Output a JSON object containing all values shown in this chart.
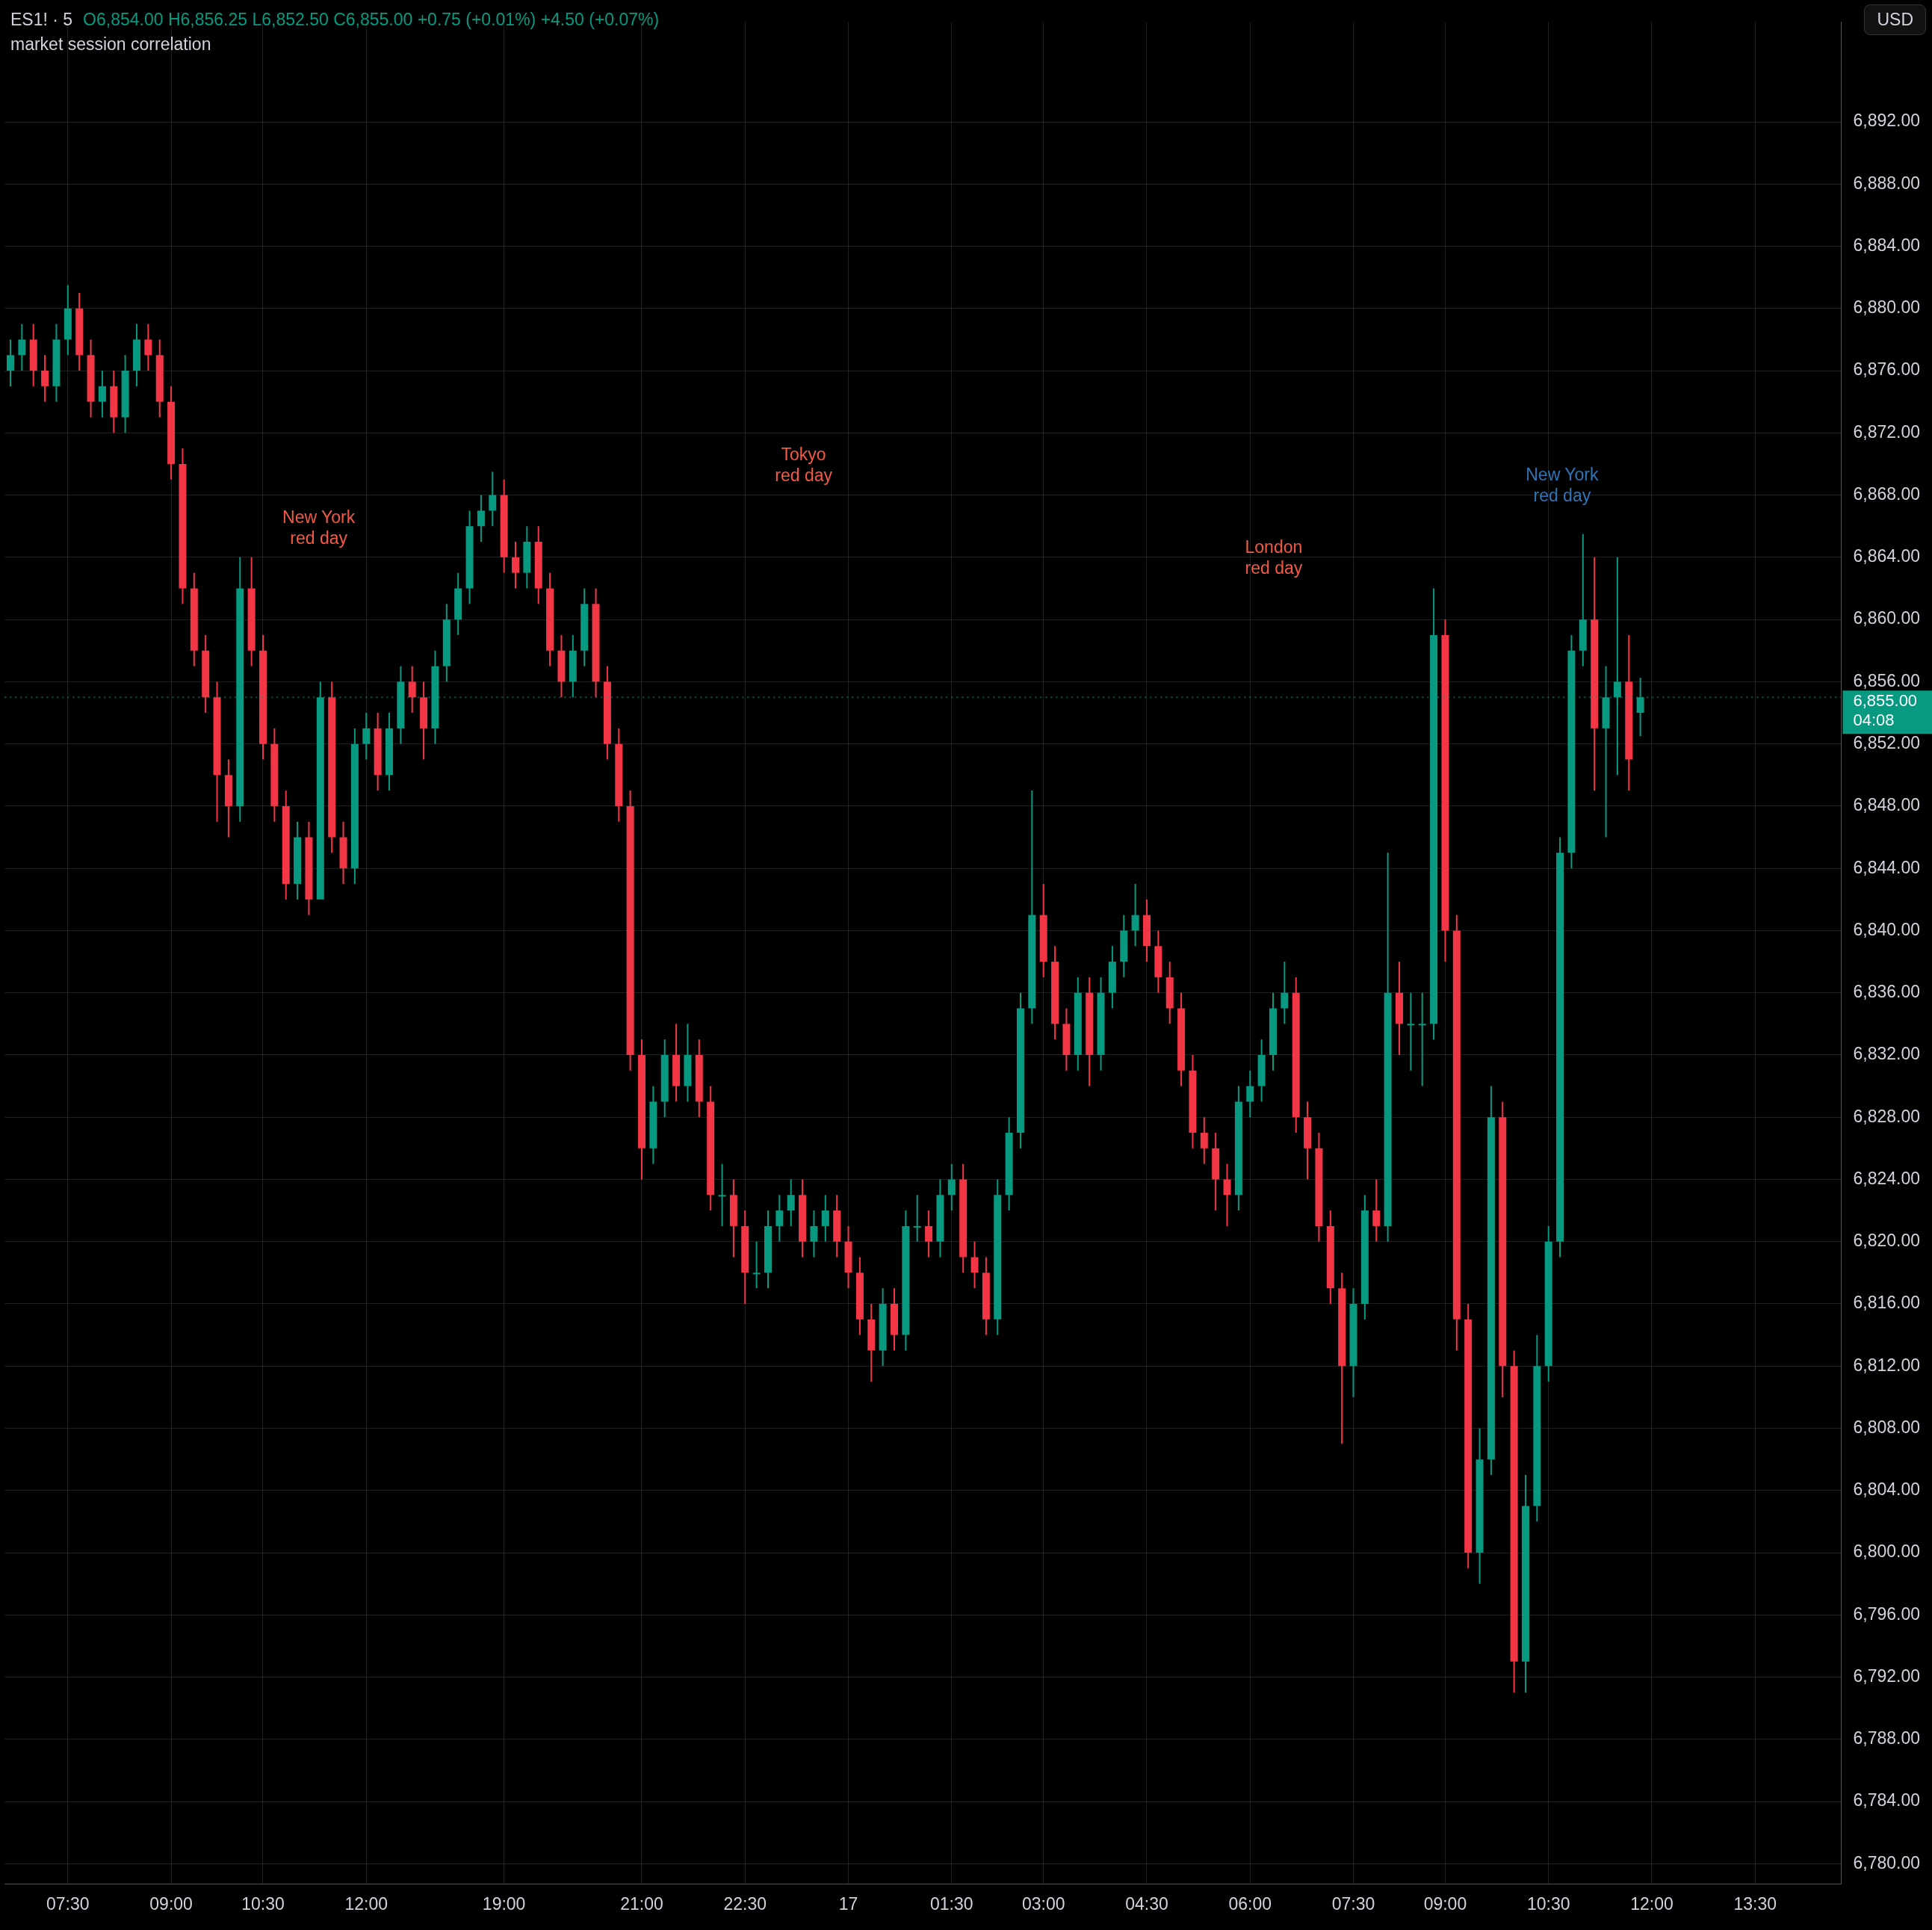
{
  "chart_data": {
    "type": "candlestick",
    "title": "ES1! · 5",
    "subtitle": "O6,854.00 H6,856.25 L6,852.50 C6,855.00 +0.75 (+0.01%) +4.50 (+0.07%)",
    "annotations": [
      "market session correlation",
      "USD",
      "New York\nred day",
      "Tokyo\nred day",
      "London\nred day",
      "New York\nred day",
      "04:08"
    ],
    "categories": [
      null,
      null,
      null,
      null,
      null,
      "07:30",
      null,
      null,
      null,
      null,
      null,
      null,
      null,
      null,
      "09:00",
      null,
      null,
      null,
      null,
      null,
      null,
      null,
      "10:30",
      null,
      null,
      null,
      null,
      null,
      null,
      null,
      null,
      "12:00",
      null,
      null,
      null,
      null,
      null,
      null,
      null,
      null,
      null,
      null,
      null,
      "19:00",
      null,
      null,
      null,
      null,
      null,
      null,
      null,
      null,
      null,
      null,
      null,
      "21:00",
      null,
      null,
      null,
      null,
      null,
      null,
      null,
      null,
      "22:30",
      null,
      null,
      null,
      null,
      null,
      null,
      null,
      null,
      "17",
      null,
      null,
      null,
      null,
      null,
      null,
      null,
      null,
      "01:30",
      null,
      null,
      null,
      null,
      null,
      null,
      null,
      "03:00",
      null,
      null,
      null,
      null,
      null,
      null,
      null,
      null,
      "04:30",
      null,
      null,
      null,
      null,
      null,
      null,
      null,
      null,
      "06:00",
      null,
      null,
      null,
      null,
      null,
      null,
      null,
      null,
      "07:30",
      null,
      null,
      null,
      null,
      null,
      null,
      null,
      "09:00",
      null,
      null,
      null,
      null,
      null,
      null,
      null,
      null,
      "10:30",
      null,
      null,
      null,
      null,
      null,
      null,
      null,
      null,
      "12:00",
      null,
      null,
      null,
      null,
      null,
      null,
      null,
      null,
      "13:30",
      null,
      null,
      null,
      null,
      null,
      null,
      null
    ],
    "ohlc": [
      [
        6876,
        6878,
        6875,
        6877
      ],
      [
        6877,
        6879,
        6876,
        6878
      ],
      [
        6878,
        6879,
        6875,
        6876
      ],
      [
        6876,
        6877,
        6874,
        6875
      ],
      [
        6875,
        6879,
        6874,
        6878
      ],
      [
        6878,
        6881.5,
        6877,
        6880
      ],
      [
        6880,
        6881,
        6876,
        6877
      ],
      [
        6877,
        6878,
        6873,
        6874
      ],
      [
        6874,
        6876,
        6873,
        6875
      ],
      [
        6875,
        6876,
        6872,
        6873
      ],
      [
        6873,
        6877,
        6872,
        6876
      ],
      [
        6876,
        6879,
        6875,
        6878
      ],
      [
        6878,
        6879,
        6876,
        6877
      ],
      [
        6877,
        6878,
        6873,
        6874
      ],
      [
        6874,
        6875,
        6869,
        6870
      ],
      [
        6870,
        6871,
        6861,
        6862
      ],
      [
        6862,
        6863,
        6857,
        6858
      ],
      [
        6858,
        6859,
        6854,
        6855
      ],
      [
        6855,
        6856,
        6847,
        6850
      ],
      [
        6850,
        6851,
        6846,
        6848
      ],
      [
        6848,
        6864,
        6847,
        6862
      ],
      [
        6862,
        6864,
        6857,
        6858
      ],
      [
        6858,
        6859,
        6851,
        6852
      ],
      [
        6852,
        6853,
        6847,
        6848
      ],
      [
        6848,
        6849,
        6842,
        6843
      ],
      [
        6843,
        6847,
        6842,
        6846
      ],
      [
        6846,
        6847,
        6841,
        6842
      ],
      [
        6842,
        6856,
        6842,
        6855
      ],
      [
        6855,
        6856,
        6845,
        6846
      ],
      [
        6846,
        6847,
        6843,
        6844
      ],
      [
        6844,
        6853,
        6843,
        6852
      ],
      [
        6852,
        6854,
        6851,
        6853
      ],
      [
        6853,
        6854,
        6849,
        6850
      ],
      [
        6850,
        6854,
        6849,
        6853
      ],
      [
        6853,
        6857,
        6852,
        6856
      ],
      [
        6856,
        6857,
        6854,
        6855
      ],
      [
        6855,
        6856,
        6851,
        6853
      ],
      [
        6853,
        6858,
        6852,
        6857
      ],
      [
        6857,
        6861,
        6856,
        6860
      ],
      [
        6860,
        6863,
        6859,
        6862
      ],
      [
        6862,
        6867,
        6861,
        6866
      ],
      [
        6866,
        6868,
        6865,
        6867
      ],
      [
        6867,
        6869.5,
        6866,
        6868
      ],
      [
        6868,
        6869,
        6863,
        6864
      ],
      [
        6864,
        6865,
        6862,
        6863
      ],
      [
        6863,
        6866,
        6862,
        6865
      ],
      [
        6865,
        6866,
        6861,
        6862
      ],
      [
        6862,
        6863,
        6857,
        6858
      ],
      [
        6858,
        6859,
        6855,
        6856
      ],
      [
        6856,
        6859,
        6855,
        6858
      ],
      [
        6858,
        6862,
        6857,
        6861
      ],
      [
        6861,
        6862,
        6855,
        6856
      ],
      [
        6856,
        6857,
        6851,
        6852
      ],
      [
        6852,
        6853,
        6847,
        6848
      ],
      [
        6848,
        6849,
        6831,
        6832
      ],
      [
        6832,
        6833,
        6824,
        6826
      ],
      [
        6826,
        6830,
        6825,
        6829
      ],
      [
        6829,
        6833,
        6828,
        6832
      ],
      [
        6832,
        6834,
        6829,
        6830
      ],
      [
        6830,
        6834,
        6829,
        6832
      ],
      [
        6832,
        6833,
        6828,
        6829
      ],
      [
        6829,
        6830,
        6822,
        6823
      ],
      [
        6823,
        6825,
        6821,
        6823
      ],
      [
        6823,
        6824,
        6819,
        6821
      ],
      [
        6821,
        6822,
        6816,
        6818
      ],
      [
        6818,
        6820,
        6817,
        6818
      ],
      [
        6818,
        6822,
        6817,
        6821
      ],
      [
        6821,
        6823,
        6820,
        6822
      ],
      [
        6822,
        6824,
        6821,
        6823
      ],
      [
        6823,
        6824,
        6819,
        6820
      ],
      [
        6820,
        6822,
        6819,
        6821
      ],
      [
        6821,
        6823,
        6820,
        6822
      ],
      [
        6822,
        6823,
        6819,
        6820
      ],
      [
        6820,
        6821,
        6817,
        6818
      ],
      [
        6818,
        6819,
        6814,
        6815
      ],
      [
        6815,
        6816,
        6811,
        6813
      ],
      [
        6813,
        6817,
        6812,
        6816
      ],
      [
        6816,
        6817,
        6813,
        6814
      ],
      [
        6814,
        6822,
        6813,
        6821
      ],
      [
        6821,
        6823,
        6820,
        6821
      ],
      [
        6821,
        6822,
        6819,
        6820
      ],
      [
        6820,
        6824,
        6819,
        6823
      ],
      [
        6823,
        6825,
        6822,
        6824
      ],
      [
        6824,
        6825,
        6818,
        6819
      ],
      [
        6819,
        6820,
        6817,
        6818
      ],
      [
        6818,
        6819,
        6814,
        6815
      ],
      [
        6815,
        6824,
        6814,
        6823
      ],
      [
        6823,
        6828,
        6822,
        6827
      ],
      [
        6827,
        6836,
        6826,
        6835
      ],
      [
        6835,
        6849,
        6834,
        6841
      ],
      [
        6841,
        6843,
        6837,
        6838
      ],
      [
        6838,
        6839,
        6833,
        6834
      ],
      [
        6834,
        6835,
        6831,
        6832
      ],
      [
        6832,
        6837,
        6831,
        6836
      ],
      [
        6836,
        6837,
        6830,
        6832
      ],
      [
        6832,
        6837,
        6831,
        6836
      ],
      [
        6836,
        6839,
        6835,
        6838
      ],
      [
        6838,
        6841,
        6837,
        6840
      ],
      [
        6840,
        6843,
        6839,
        6841
      ],
      [
        6841,
        6842,
        6838,
        6839
      ],
      [
        6839,
        6840,
        6836,
        6837
      ],
      [
        6837,
        6838,
        6834,
        6835
      ],
      [
        6835,
        6836,
        6830,
        6831
      ],
      [
        6831,
        6832,
        6826,
        6827
      ],
      [
        6827,
        6828,
        6825,
        6826
      ],
      [
        6826,
        6827,
        6822,
        6824
      ],
      [
        6824,
        6825,
        6821,
        6823
      ],
      [
        6823,
        6830,
        6822,
        6829
      ],
      [
        6829,
        6831,
        6828,
        6830
      ],
      [
        6830,
        6833,
        6829,
        6832
      ],
      [
        6832,
        6836,
        6831,
        6835
      ],
      [
        6835,
        6838,
        6834,
        6836
      ],
      [
        6836,
        6837,
        6827,
        6828
      ],
      [
        6828,
        6829,
        6824,
        6826
      ],
      [
        6826,
        6827,
        6820,
        6821
      ],
      [
        6821,
        6822,
        6816,
        6817
      ],
      [
        6817,
        6818,
        6807,
        6812
      ],
      [
        6812,
        6817,
        6810,
        6816
      ],
      [
        6816,
        6823,
        6815,
        6822
      ],
      [
        6822,
        6824,
        6820,
        6821
      ],
      [
        6821,
        6845,
        6820,
        6836
      ],
      [
        6836,
        6838,
        6832,
        6834
      ],
      [
        6834,
        6836,
        6831,
        6834
      ],
      [
        6834,
        6836,
        6830,
        6834
      ],
      [
        6834,
        6862,
        6833,
        6859
      ],
      [
        6859,
        6860,
        6838,
        6840
      ],
      [
        6840,
        6841,
        6813,
        6815
      ],
      [
        6815,
        6816,
        6799,
        6800
      ],
      [
        6800,
        6808,
        6798,
        6806
      ],
      [
        6806,
        6830,
        6805,
        6828
      ],
      [
        6828,
        6829,
        6810,
        6812
      ],
      [
        6812,
        6813,
        6791,
        6793
      ],
      [
        6793,
        6805,
        6791,
        6803
      ],
      [
        6803,
        6814,
        6802,
        6812
      ],
      [
        6812,
        6821,
        6811,
        6820
      ],
      [
        6820,
        6846,
        6819,
        6845
      ],
      [
        6845,
        6859,
        6844,
        6858
      ],
      [
        6858,
        6865.5,
        6857,
        6860
      ],
      [
        6860,
        6864,
        6849,
        6853
      ],
      [
        6853,
        6857,
        6846,
        6855
      ],
      [
        6855,
        6864,
        6850,
        6856
      ],
      [
        6856,
        6859,
        6849,
        6851
      ],
      [
        6854,
        6856.25,
        6852.5,
        6855
      ],
      null,
      null,
      null,
      null,
      null,
      null,
      null,
      null,
      null,
      null,
      null,
      null,
      null,
      null,
      null,
      null,
      null
    ],
    "ylim": [
      6778.7,
      6898.4
    ],
    "yticks": [
      {
        "value": 6780,
        "label": "6,780.00"
      },
      {
        "value": 6784,
        "label": "6,784.00"
      },
      {
        "value": 6788,
        "label": "6,788.00"
      },
      {
        "value": 6792,
        "label": "6,792.00"
      },
      {
        "value": 6796,
        "label": "6,796.00"
      },
      {
        "value": 6800,
        "label": "6,800.00"
      },
      {
        "value": 6804,
        "label": "6,804.00"
      },
      {
        "value": 6808,
        "label": "6,808.00"
      },
      {
        "value": 6812,
        "label": "6,812.00"
      },
      {
        "value": 6816,
        "label": "6,816.00"
      },
      {
        "value": 6820,
        "label": "6,820.00"
      },
      {
        "value": 6824,
        "label": "6,824.00"
      },
      {
        "value": 6828,
        "label": "6,828.00"
      },
      {
        "value": 6832,
        "label": "6,832.00"
      },
      {
        "value": 6836,
        "label": "6,836.00"
      },
      {
        "value": 6840,
        "label": "6,840.00"
      },
      {
        "value": 6844,
        "label": "6,844.00"
      },
      {
        "value": 6848,
        "label": "6,848.00"
      },
      {
        "value": 6852,
        "label": "6,852.00"
      },
      {
        "value": 6856,
        "label": "6,856.00"
      },
      {
        "value": 6860,
        "label": "6,860.00"
      },
      {
        "value": 6864,
        "label": "6,864.00"
      },
      {
        "value": 6868,
        "label": "6,868.00"
      },
      {
        "value": 6872,
        "label": "6,872.00"
      },
      {
        "value": 6876,
        "label": "6,876.00"
      },
      {
        "value": 6880,
        "label": "6,880.00"
      },
      {
        "value": 6884,
        "label": "6,884.00"
      },
      {
        "value": 6888,
        "label": "6,888.00"
      },
      {
        "value": 6892,
        "label": "6,892.00"
      }
    ],
    "grid": true,
    "ref_lines": [
      {
        "axis": "y",
        "value": 6855,
        "label": "6,855.00",
        "color": "#089981",
        "line_style": "dotted"
      }
    ]
  }
}
